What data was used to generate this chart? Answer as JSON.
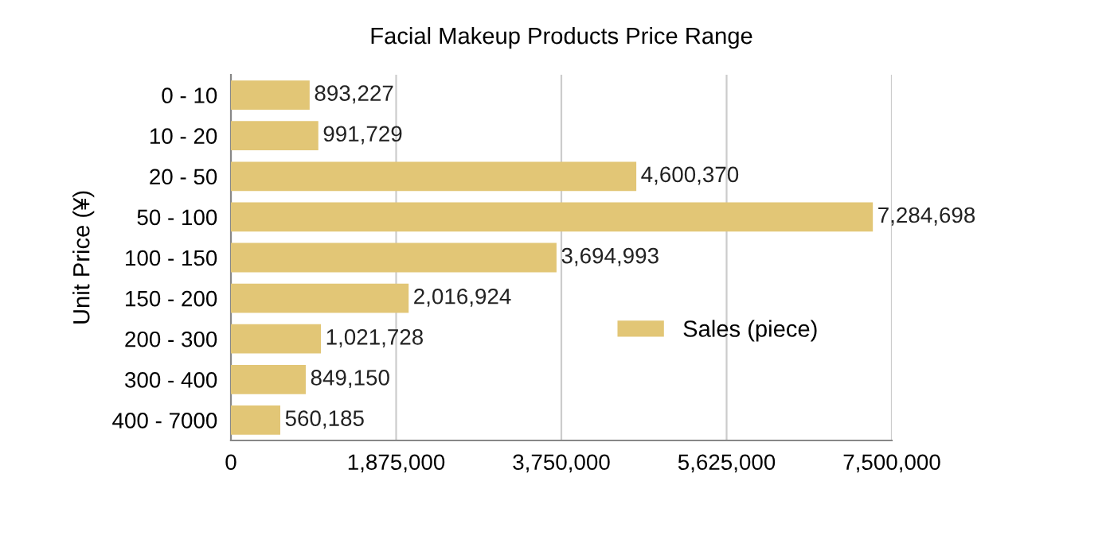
{
  "chart_data": {
    "type": "bar",
    "orientation": "horizontal",
    "title": "Facial Makeup Products Price Range",
    "ylabel": "Unit Price (¥)",
    "categories": [
      "0 - 10",
      "10 - 20",
      "20 - 50",
      "50 - 100",
      "100 - 150",
      "150 - 200",
      "200 - 300",
      "300 - 400",
      "400 - 7000"
    ],
    "series": [
      {
        "name": "Sales (piece)",
        "color": "#e2c676",
        "values": [
          893227,
          991729,
          4600370,
          7284698,
          3694993,
          2016924,
          1021728,
          849150,
          560185
        ],
        "value_labels": [
          "893,227",
          "991,729",
          "4,600,370",
          "7,284,698",
          "3,694,993",
          "2,016,924",
          "1,021,728",
          "849,150",
          "560,185"
        ]
      }
    ],
    "xlim": [
      0,
      7500000
    ],
    "xticks": [
      {
        "value": 0,
        "label": "0"
      },
      {
        "value": 1875000,
        "label": "1,875,000"
      },
      {
        "value": 3750000,
        "label": "3,750,000"
      },
      {
        "value": 5625000,
        "label": "5,625,000"
      },
      {
        "value": 7500000,
        "label": "7,500,000"
      }
    ],
    "grid": "x",
    "legend": "right"
  }
}
